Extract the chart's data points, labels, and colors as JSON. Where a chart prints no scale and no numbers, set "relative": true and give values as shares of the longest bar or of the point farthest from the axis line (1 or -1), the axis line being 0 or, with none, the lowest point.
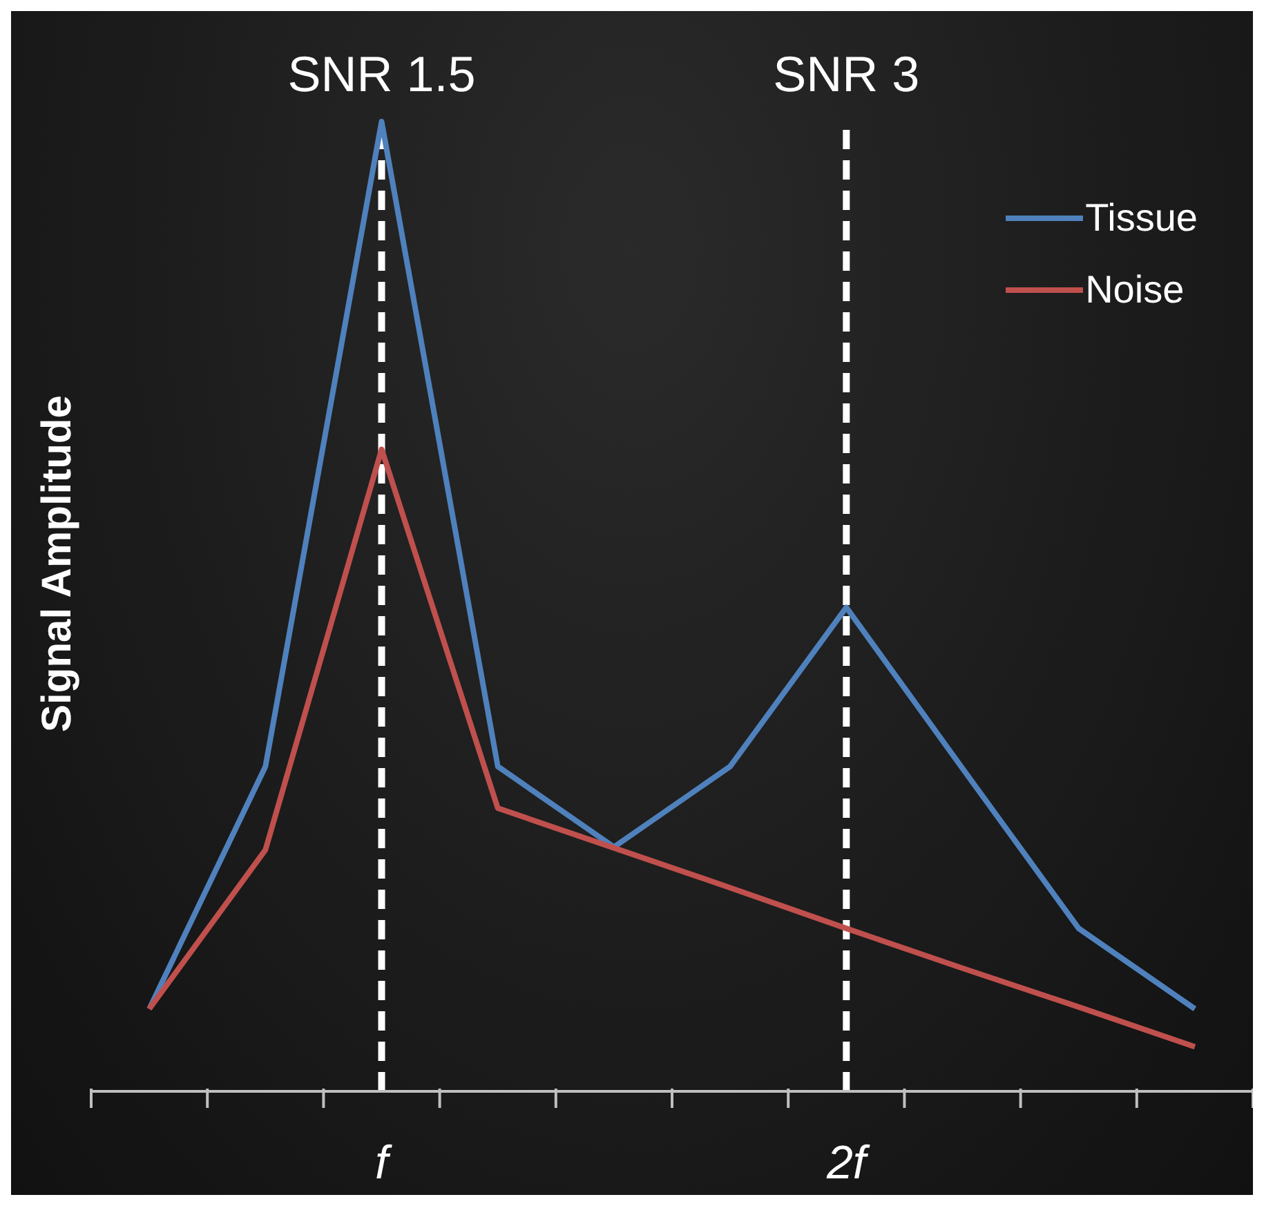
{
  "chart_data": {
    "type": "line",
    "relative": true,
    "ylabel": "Signal Amplitude",
    "categories": [
      null,
      null,
      "f",
      null,
      null,
      null,
      "2f",
      null,
      null,
      null
    ],
    "series": [
      {
        "name": "Tissue",
        "color": "#4f81bd",
        "values": [
          0.085,
          0.335,
          1,
          0.335,
          0.252,
          0.335,
          0.499,
          0.333,
          0.168,
          0.085
        ]
      },
      {
        "name": "Noise",
        "color": "#c0504d",
        "values": [
          0.085,
          0.249,
          0.662,
          0.292,
          0.251,
          0.21,
          0.168,
          0.127,
          0.087,
          0.046
        ]
      }
    ],
    "ref_lines": [
      {
        "axis": "x",
        "value": "f",
        "label": "SNR 1.5",
        "color": "#ffffff",
        "line_style": "dashed"
      },
      {
        "axis": "x",
        "value": "2f",
        "label": "SNR 3",
        "color": "#ffffff",
        "line_style": "dashed"
      }
    ],
    "legend": "top right",
    "marker": "none",
    "line_style": "solid"
  }
}
